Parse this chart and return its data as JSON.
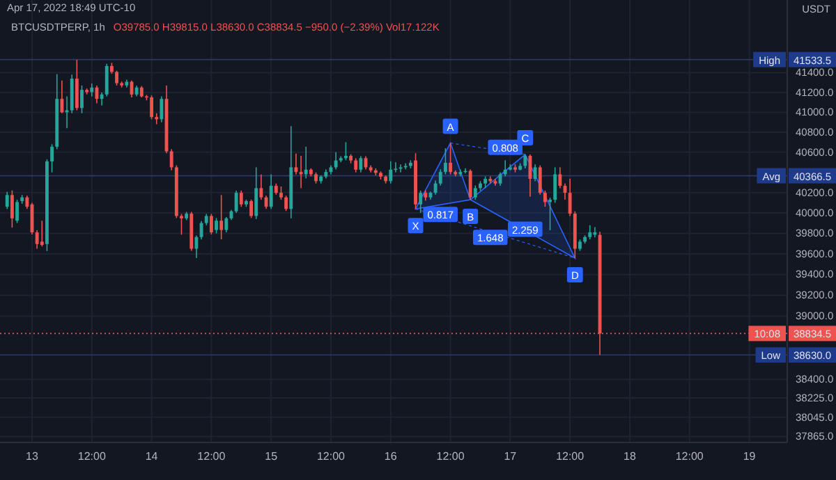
{
  "chart_data": {
    "type": "candlestick",
    "title": "BTCUSDTPERP, 1h",
    "subtitle": "O39785.0 H39815.0 L38630.0 C38834.5 −950.0 (−2.39%) Vol17.122K",
    "ylabel": "USDT",
    "log": true,
    "grid": true,
    "x": [
      "2022-04-12T19:00",
      "2022-04-12T20:00",
      "2022-04-12T21:00",
      "2022-04-12T22:00",
      "2022-04-12T23:00",
      "2022-04-13T00:00",
      "2022-04-13T01:00",
      "2022-04-13T02:00",
      "2022-04-13T03:00",
      "2022-04-13T04:00",
      "2022-04-13T05:00",
      "2022-04-13T06:00",
      "2022-04-13T07:00",
      "2022-04-13T08:00",
      "2022-04-13T09:00",
      "2022-04-13T10:00",
      "2022-04-13T11:00",
      "2022-04-13T12:00",
      "2022-04-13T13:00",
      "2022-04-13T14:00",
      "2022-04-13T15:00",
      "2022-04-13T16:00",
      "2022-04-13T17:00",
      "2022-04-13T18:00",
      "2022-04-13T19:00",
      "2022-04-13T20:00",
      "2022-04-13T21:00",
      "2022-04-13T22:00",
      "2022-04-13T23:00",
      "2022-04-14T00:00",
      "2022-04-14T01:00",
      "2022-04-14T02:00",
      "2022-04-14T03:00",
      "2022-04-14T04:00",
      "2022-04-14T05:00",
      "2022-04-14T06:00",
      "2022-04-14T07:00",
      "2022-04-14T08:00",
      "2022-04-14T09:00",
      "2022-04-14T10:00",
      "2022-04-14T11:00",
      "2022-04-14T12:00",
      "2022-04-14T13:00",
      "2022-04-14T14:00",
      "2022-04-14T15:00",
      "2022-04-14T16:00",
      "2022-04-14T17:00",
      "2022-04-14T18:00",
      "2022-04-14T19:00",
      "2022-04-14T20:00",
      "2022-04-14T21:00",
      "2022-04-14T22:00",
      "2022-04-14T23:00",
      "2022-04-15T00:00",
      "2022-04-15T01:00",
      "2022-04-15T02:00",
      "2022-04-15T03:00",
      "2022-04-15T04:00",
      "2022-04-15T05:00",
      "2022-04-15T06:00",
      "2022-04-15T07:00",
      "2022-04-15T08:00",
      "2022-04-15T09:00",
      "2022-04-15T10:00",
      "2022-04-15T11:00",
      "2022-04-15T12:00",
      "2022-04-15T13:00",
      "2022-04-15T14:00",
      "2022-04-15T15:00",
      "2022-04-15T16:00",
      "2022-04-15T17:00",
      "2022-04-15T18:00",
      "2022-04-15T19:00",
      "2022-04-15T20:00",
      "2022-04-15T21:00",
      "2022-04-15T22:00",
      "2022-04-15T23:00",
      "2022-04-16T00:00",
      "2022-04-16T01:00",
      "2022-04-16T02:00",
      "2022-04-16T03:00",
      "2022-04-16T04:00",
      "2022-04-16T05:00",
      "2022-04-16T06:00",
      "2022-04-16T07:00",
      "2022-04-16T08:00",
      "2022-04-16T09:00",
      "2022-04-16T10:00",
      "2022-04-16T11:00",
      "2022-04-16T12:00",
      "2022-04-16T13:00",
      "2022-04-16T14:00",
      "2022-04-16T15:00",
      "2022-04-16T16:00",
      "2022-04-16T17:00",
      "2022-04-16T18:00",
      "2022-04-16T19:00",
      "2022-04-16T20:00",
      "2022-04-16T21:00",
      "2022-04-16T22:00",
      "2022-04-16T23:00",
      "2022-04-17T00:00",
      "2022-04-17T01:00",
      "2022-04-17T02:00",
      "2022-04-17T03:00",
      "2022-04-17T04:00",
      "2022-04-17T05:00",
      "2022-04-17T06:00",
      "2022-04-17T07:00",
      "2022-04-17T08:00",
      "2022-04-17T09:00",
      "2022-04-17T10:00",
      "2022-04-17T11:00",
      "2022-04-17T12:00",
      "2022-04-17T13:00",
      "2022-04-17T14:00",
      "2022-04-17T15:00",
      "2022-04-17T16:00",
      "2022-04-17T17:00",
      "2022-04-17T18:00"
    ],
    "ohlc": [
      [
        40061,
        40208,
        40039,
        40176
      ],
      [
        40176,
        40221,
        39856,
        39947
      ],
      [
        39924,
        40130,
        39901,
        40107
      ],
      [
        40116,
        40176,
        40090,
        40153
      ],
      [
        40153,
        40170,
        40040,
        40061
      ],
      [
        40084,
        40100,
        39790,
        39810
      ],
      [
        39810,
        39830,
        39650,
        39696
      ],
      [
        39719,
        39924,
        39673,
        39687
      ],
      [
        39696,
        40530,
        39628,
        40509
      ],
      [
        40509,
        40680,
        40400,
        40655
      ],
      [
        40655,
        41385,
        40630,
        41135
      ],
      [
        41135,
        41320,
        40990,
        41000
      ],
      [
        41000,
        41160,
        40840,
        41020
      ],
      [
        41020,
        41380,
        40990,
        41340
      ],
      [
        41340,
        41532,
        41020,
        41043
      ],
      [
        41043,
        41270,
        40990,
        41226
      ],
      [
        41226,
        41240,
        41180,
        41203
      ],
      [
        41203,
        41290,
        41160,
        41250
      ],
      [
        41250,
        41270,
        41090,
        41135
      ],
      [
        41135,
        41200,
        41070,
        41180
      ],
      [
        41180,
        41490,
        41160,
        41468
      ],
      [
        41468,
        41500,
        41390,
        41408
      ],
      [
        41408,
        41420,
        41270,
        41294
      ],
      [
        41294,
        41310,
        41250,
        41271
      ],
      [
        41271,
        41330,
        41250,
        41308
      ],
      [
        41308,
        41320,
        41150,
        41180
      ],
      [
        41180,
        41270,
        41160,
        41250
      ],
      [
        41250,
        41265,
        41150,
        41160
      ],
      [
        41160,
        41175,
        41120,
        41150
      ],
      [
        41150,
        41170,
        40930,
        40952
      ],
      [
        40952,
        40990,
        40880,
        40930
      ],
      [
        40930,
        41160,
        40900,
        41135
      ],
      [
        41135,
        41270,
        40590,
        40609
      ],
      [
        40609,
        40630,
        40420,
        40450
      ],
      [
        40450,
        40470,
        39950,
        39970
      ],
      [
        39970,
        39990,
        39787,
        39947
      ],
      [
        39947,
        40010,
        39930,
        39993
      ],
      [
        39993,
        40010,
        39630,
        39650
      ],
      [
        39650,
        39780,
        39560,
        39764
      ],
      [
        39764,
        39920,
        39740,
        39901
      ],
      [
        39901,
        39990,
        39880,
        39970
      ],
      [
        39970,
        39990,
        39790,
        39810
      ],
      [
        39833,
        39950,
        39800,
        39924
      ],
      [
        39924,
        40176,
        39742,
        39833
      ],
      [
        39833,
        39960,
        39810,
        39947
      ],
      [
        39947,
        40030,
        39930,
        40016
      ],
      [
        40016,
        40220,
        40000,
        40198
      ],
      [
        40198,
        40220,
        40060,
        40084
      ],
      [
        40084,
        40130,
        40060,
        40116
      ],
      [
        40116,
        40130,
        39950,
        39970
      ],
      [
        39970,
        40450,
        39940,
        40244
      ],
      [
        40244,
        40380,
        40130,
        40153
      ],
      [
        40153,
        40170,
        40040,
        40061
      ],
      [
        40061,
        40380,
        40040,
        40267
      ],
      [
        40267,
        40290,
        40180,
        40198
      ],
      [
        40198,
        40260,
        40130,
        40153
      ],
      [
        40153,
        40170,
        40020,
        40039
      ],
      [
        40039,
        40861,
        39947,
        40450
      ],
      [
        40450,
        40587,
        40380,
        40404
      ],
      [
        40404,
        40564,
        40244,
        40381
      ],
      [
        40381,
        40655,
        40340,
        40427
      ],
      [
        40427,
        40440,
        40360,
        40381
      ],
      [
        40381,
        40400,
        40290,
        40313
      ],
      [
        40313,
        40370,
        40290,
        40358
      ],
      [
        40358,
        40430,
        40340,
        40404
      ],
      [
        40404,
        40470,
        40380,
        40450
      ],
      [
        40450,
        40600,
        40430,
        40518
      ],
      [
        40518,
        40560,
        40500,
        40541
      ],
      [
        40541,
        40700,
        40520,
        40564
      ],
      [
        40564,
        40580,
        40490,
        40518
      ],
      [
        40518,
        40540,
        40400,
        40427
      ],
      [
        40427,
        40560,
        40400,
        40541
      ],
      [
        40541,
        40560,
        40430,
        40450
      ],
      [
        40450,
        40470,
        40400,
        40420
      ],
      [
        40420,
        40440,
        40370,
        40395
      ],
      [
        40395,
        40410,
        40330,
        40358
      ],
      [
        40358,
        40370,
        40290,
        40313
      ],
      [
        40313,
        40510,
        40290,
        40427
      ],
      [
        40427,
        40500,
        40400,
        40436
      ],
      [
        40436,
        40480,
        40400,
        40450
      ],
      [
        40450,
        40490,
        40430,
        40464
      ],
      [
        40464,
        40520,
        40440,
        40495
      ],
      [
        40518,
        40590,
        40039,
        40084
      ],
      [
        40084,
        40220,
        40000,
        40198
      ],
      [
        40198,
        40220,
        40120,
        40153
      ],
      [
        40153,
        40210,
        40130,
        40198
      ],
      [
        40198,
        40320,
        40180,
        40290
      ],
      [
        40290,
        40430,
        40270,
        40404
      ],
      [
        40404,
        40640,
        40380,
        40495
      ],
      [
        40495,
        40692,
        40380,
        40404
      ],
      [
        40404,
        40420,
        40360,
        40381
      ],
      [
        40381,
        40430,
        40360,
        40404
      ],
      [
        40404,
        40440,
        40390,
        40415
      ],
      [
        40415,
        40430,
        40130,
        40153
      ],
      [
        40153,
        40270,
        40130,
        40244
      ],
      [
        40244,
        40313,
        40220,
        40290
      ],
      [
        40290,
        40360,
        40244,
        40336
      ],
      [
        40336,
        40360,
        40290,
        40313
      ],
      [
        40313,
        40336,
        40267,
        40290
      ],
      [
        40290,
        40400,
        40267,
        40381
      ],
      [
        40381,
        40520,
        40360,
        40427
      ],
      [
        40427,
        40480,
        40420,
        40450
      ],
      [
        40450,
        40480,
        40400,
        40427
      ],
      [
        40427,
        40490,
        40420,
        40464
      ],
      [
        40464,
        40578,
        40440,
        40564
      ],
      [
        40564,
        40578,
        40160,
        40336
      ],
      [
        40336,
        40480,
        40313,
        40450
      ],
      [
        40450,
        40470,
        40180,
        40198
      ],
      [
        40198,
        40220,
        40061,
        40107
      ],
      [
        40107,
        40150,
        39830,
        40130
      ],
      [
        40130,
        40450,
        40100,
        40381
      ],
      [
        40381,
        40450,
        40244,
        40267
      ],
      [
        40267,
        40290,
        40130,
        40198
      ],
      [
        40198,
        40336,
        39970,
        39993
      ],
      [
        39993,
        40016,
        39559,
        39650
      ],
      [
        39650,
        39740,
        39630,
        39719
      ],
      [
        39719,
        39780,
        39700,
        39764
      ],
      [
        39764,
        39880,
        39742,
        39810
      ],
      [
        39787,
        39860,
        39760,
        39810
      ],
      [
        39785,
        39815,
        38630,
        38834.5
      ]
    ],
    "colors": [
      "#26a69a",
      "#ef5350",
      "#26a69a",
      "#26a69a",
      "#ef5350",
      "#ef5350",
      "#ef5350",
      "#ef5350",
      "#26a69a",
      "#26a69a",
      "#26a69a",
      "#ef5350",
      "#26a69a",
      "#26a69a",
      "#ef5350",
      "#26a69a",
      "#ef5350",
      "#26a69a",
      "#ef5350",
      "#26a69a",
      "#26a69a",
      "#ef5350",
      "#ef5350",
      "#ef5350",
      "#26a69a",
      "#ef5350",
      "#26a69a",
      "#ef5350",
      "#ef5350",
      "#ef5350",
      "#ef5350",
      "#26a69a",
      "#ef5350",
      "#ef5350",
      "#ef5350",
      "#ef5350",
      "#26a69a",
      "#ef5350",
      "#26a69a",
      "#26a69a",
      "#26a69a",
      "#ef5350",
      "#26a69a",
      "#ef5350",
      "#26a69a",
      "#26a69a",
      "#26a69a",
      "#ef5350",
      "#26a69a",
      "#ef5350",
      "#26a69a",
      "#ef5350",
      "#ef5350",
      "#26a69a",
      "#ef5350",
      "#ef5350",
      "#ef5350",
      "#26a69a",
      "#ef5350",
      "#ef5350",
      "#26a69a",
      "#ef5350",
      "#ef5350",
      "#26a69a",
      "#26a69a",
      "#26a69a",
      "#26a69a",
      "#26a69a",
      "#26a69a",
      "#ef5350",
      "#ef5350",
      "#26a69a",
      "#ef5350",
      "#ef5350",
      "#ef5350",
      "#ef5350",
      "#ef5350",
      "#26a69a",
      "#26a69a",
      "#26a69a",
      "#26a69a",
      "#26a69a",
      "#ef5350",
      "#26a69a",
      "#ef5350",
      "#26a69a",
      "#26a69a",
      "#26a69a",
      "#26a69a",
      "#ef5350",
      "#ef5350",
      "#26a69a",
      "#26a69a",
      "#ef5350",
      "#26a69a",
      "#26a69a",
      "#26a69a",
      "#ef5350",
      "#ef5350",
      "#26a69a",
      "#26a69a",
      "#26a69a",
      "#ef5350",
      "#26a69a",
      "#26a69a",
      "#ef5350",
      "#26a69a",
      "#ef5350",
      "#ef5350",
      "#26a69a",
      "#26a69a",
      "#ef5350",
      "#ef5350",
      "#ef5350",
      "#ef5350",
      "#26a69a",
      "#26a69a",
      "#26a69a",
      "#26a69a",
      "#ef5350"
    ],
    "xlim": [
      "2022-04-12T17:34",
      "2022-04-19T07:37"
    ],
    "xticks": [
      {
        "value": "2022-04-13T00:00",
        "label": "13"
      },
      {
        "value": "2022-04-13T12:00",
        "label": "12:00"
      },
      {
        "value": "2022-04-14T00:00",
        "label": "14"
      },
      {
        "value": "2022-04-14T12:00",
        "label": "12:00"
      },
      {
        "value": "2022-04-15T00:00",
        "label": "15"
      },
      {
        "value": "2022-04-15T12:00",
        "label": "12:00"
      },
      {
        "value": "2022-04-16T00:00",
        "label": "16"
      },
      {
        "value": "2022-04-16T12:00",
        "label": "12:00"
      },
      {
        "value": "2022-04-17T00:00",
        "label": "17"
      },
      {
        "value": "2022-04-17T12:00",
        "label": "12:00"
      },
      {
        "value": "2022-04-18T00:00",
        "label": "18"
      },
      {
        "value": "2022-04-18T12:00",
        "label": "12:00"
      },
      {
        "value": "2022-04-19T00:00",
        "label": "19"
      }
    ],
    "ylim": [
      37810,
      42145
    ],
    "yticks": [
      {
        "value": 41400,
        "label": "41400.0"
      },
      {
        "value": 41200,
        "label": "41200.0"
      },
      {
        "value": 41000,
        "label": "41000.0"
      },
      {
        "value": 40800,
        "label": "40800.0"
      },
      {
        "value": 40600,
        "label": "40600.0"
      },
      {
        "value": 40200,
        "label": "40200.0"
      },
      {
        "value": 40000,
        "label": "40000.0"
      },
      {
        "value": 39800,
        "label": "39800.0"
      },
      {
        "value": 39600,
        "label": "39600.0"
      },
      {
        "value": 39400,
        "label": "39400.0"
      },
      {
        "value": 39200,
        "label": "39200.0"
      },
      {
        "value": 39000,
        "label": "39000.0"
      },
      {
        "value": 38400,
        "label": "38400.0"
      },
      {
        "value": 38225,
        "label": "38225.0"
      },
      {
        "value": 38045,
        "label": "38045.0"
      },
      {
        "value": 37865,
        "label": "37865.0"
      }
    ],
    "ref_lines": [
      {
        "axis": "y",
        "value": 41533.5,
        "label": "41533.5",
        "color": "#2a3a66"
      },
      {
        "axis": "y",
        "value": 40366.5,
        "label": "40366.5",
        "color": "#2a3a66"
      },
      {
        "axis": "y",
        "value": 38630,
        "label": "38630.0",
        "color": "#2a3a66"
      },
      {
        "axis": "y",
        "value": 38834.5,
        "label": "38834.5",
        "color": "#ef5350",
        "line_style": "dotted"
      }
    ],
    "annotations": [
      "Apr 17, 2022 18:49 UTC-10",
      {
        "text": "High",
        "y": 41533.5
      },
      {
        "text": "Avg",
        "y": 40366.5
      },
      {
        "text": "Low",
        "y": 38630
      },
      {
        "text": "10:08",
        "y": 38834.5
      },
      {
        "text": "X",
        "x": "2022-04-16T05:00",
        "y": 40039
      },
      {
        "text": "A",
        "x": "2022-04-16T12:00",
        "y": 40692
      },
      {
        "text": "B",
        "x": "2022-04-16T16:00",
        "y": 40130
      },
      {
        "text": "C",
        "x": "2022-04-17T03:00",
        "y": 40578
      },
      {
        "text": "D",
        "x": "2022-04-17T13:00",
        "y": 39559
      },
      {
        "text": "0.817",
        "x": "2022-04-16T10:00",
        "y": 39985
      },
      {
        "text": "0.808",
        "x": "2022-04-16T23:00",
        "y": 40650
      },
      {
        "text": "2.259",
        "x": "2022-04-17T03:00",
        "y": 39840
      },
      {
        "text": "1.648",
        "x": "2022-04-16T20:00",
        "y": 39760
      }
    ]
  }
}
